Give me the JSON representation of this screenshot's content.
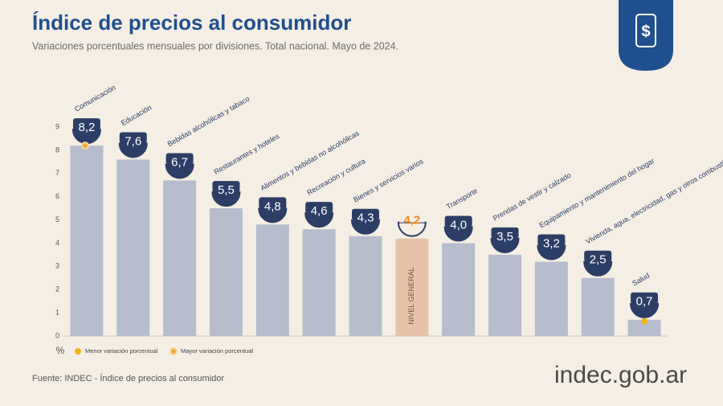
{
  "chart_data": {
    "type": "bar",
    "title": "Índice de precios al consumidor",
    "subtitle": "Variaciones porcentuales mensuales por divisiones. Total nacional. Mayo de 2024.",
    "y_axis_label": "%",
    "categories": [
      "Comunicación",
      "Educación",
      "Bebidas alcohólicas y tabaco",
      "Restaurantes y hoteles",
      "Alimentos y bebidas no alcohólicas",
      "Recreación y cultura",
      "Bienes y servicios varios",
      "NIVEL GENERAL",
      "Transporte",
      "Prendas de vestir y calzado",
      "Equipamiento y mantenimiento del hogar",
      "Vivienda, agua, electricidad, gas y otros combustibles",
      "Salud"
    ],
    "values": [
      8.2,
      7.6,
      6.7,
      5.5,
      4.8,
      4.6,
      4.3,
      4.2,
      4.0,
      3.5,
      3.2,
      2.5,
      0.7
    ],
    "value_labels": [
      "8,2",
      "7,6",
      "6,7",
      "5,5",
      "4,8",
      "4,6",
      "4,3",
      "4,2",
      "4,0",
      "3,5",
      "3,2",
      "2,5",
      "0,7"
    ],
    "colors": [
      "#b7bdcd",
      "#b7bdcd",
      "#b7bdcd",
      "#b7bdcd",
      "#b7bdcd",
      "#b7bdcd",
      "#b7bdcd",
      "#e6c3a8",
      "#b7bdcd",
      "#b7bdcd",
      "#b7bdcd",
      "#b7bdcd",
      "#b7bdcd"
    ],
    "ylim": [
      0,
      9
    ],
    "yticks": [
      0,
      1,
      2,
      3,
      4,
      5,
      6,
      7,
      8,
      9
    ],
    "legend": [
      {
        "label": "Menor variación porcentual",
        "color": "#f2b21b"
      },
      {
        "label": "Mayor variación porcentual",
        "color": "#f0a93c"
      }
    ],
    "source": "Fuente: INDEC - Índice de precios al consumidor",
    "logo": "indec.gob.ar"
  }
}
